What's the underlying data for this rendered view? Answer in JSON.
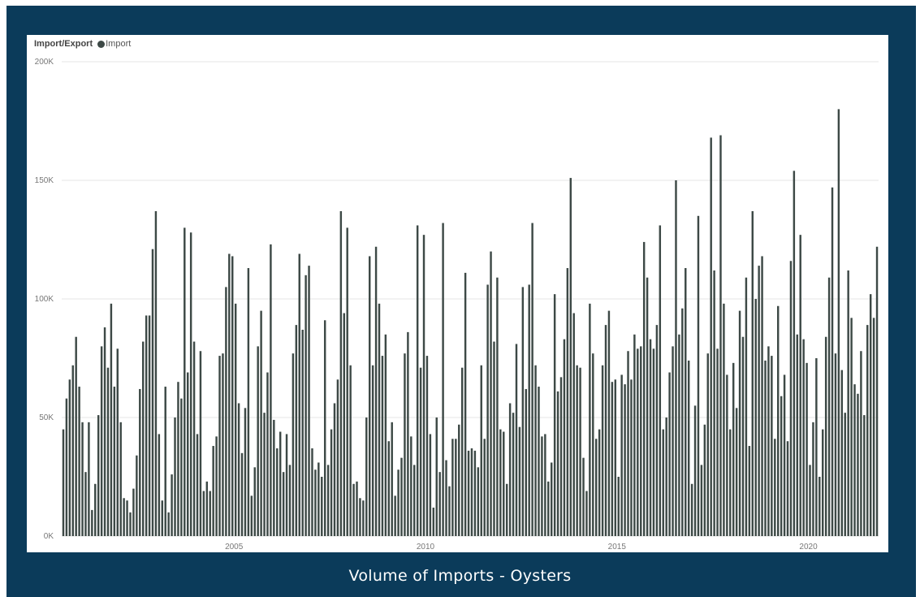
{
  "caption": "Volume of Imports - Oysters",
  "colors": {
    "frame": "#0b3b5a",
    "bar": "#3d4946",
    "grid": "#e6e6e6",
    "axis_text": "#777777"
  },
  "chart_data": {
    "type": "bar",
    "legend": {
      "title": "Import/Export",
      "items": [
        "Import"
      ],
      "placement": "top-left"
    },
    "yticks": [
      "0K",
      "50K",
      "100K",
      "150K",
      "200K"
    ],
    "ylim": [
      0,
      200000
    ],
    "xticks": [
      "2005",
      "2010",
      "2015",
      "2020"
    ],
    "x_start": "2000-07",
    "grid": true,
    "series": [
      {
        "name": "Import",
        "values": [
          45000,
          58000,
          66000,
          72000,
          84000,
          63000,
          48000,
          27000,
          48000,
          11000,
          22000,
          51000,
          80000,
          88000,
          71000,
          98000,
          63000,
          79000,
          48000,
          16000,
          15000,
          10000,
          20000,
          34000,
          62000,
          82000,
          93000,
          93000,
          121000,
          137000,
          43000,
          15000,
          63000,
          10000,
          26000,
          50000,
          65000,
          58000,
          130000,
          69000,
          128000,
          82000,
          43000,
          78000,
          19000,
          23000,
          19000,
          38000,
          42000,
          76000,
          77000,
          105000,
          119000,
          118000,
          98000,
          56000,
          35000,
          54000,
          113000,
          17000,
          29000,
          80000,
          95000,
          52000,
          69000,
          123000,
          49000,
          37000,
          44000,
          27000,
          43000,
          30000,
          77000,
          89000,
          119000,
          87000,
          110000,
          114000,
          37000,
          28000,
          31000,
          25000,
          91000,
          30000,
          45000,
          56000,
          66000,
          137000,
          94000,
          130000,
          72000,
          22000,
          23000,
          16000,
          15000,
          50000,
          118000,
          72000,
          122000,
          98000,
          76000,
          85000,
          40000,
          48000,
          17000,
          28000,
          33000,
          77000,
          86000,
          42000,
          30000,
          131000,
          71000,
          127000,
          76000,
          43000,
          12000,
          50000,
          27000,
          132000,
          32000,
          21000,
          41000,
          41000,
          47000,
          71000,
          111000,
          36000,
          37000,
          36000,
          29000,
          72000,
          41000,
          106000,
          120000,
          82000,
          109000,
          45000,
          44000,
          22000,
          56000,
          52000,
          81000,
          46000,
          105000,
          62000,
          106000,
          132000,
          72000,
          63000,
          42000,
          43000,
          23000,
          31000,
          102000,
          61000,
          67000,
          83000,
          113000,
          151000,
          94000,
          72000,
          71000,
          33000,
          19000,
          98000,
          77000,
          41000,
          45000,
          72000,
          89000,
          95000,
          65000,
          66000,
          25000,
          68000,
          64000,
          78000,
          66000,
          85000,
          79000,
          80000,
          124000,
          109000,
          83000,
          79000,
          89000,
          131000,
          45000,
          50000,
          69000,
          80000,
          150000,
          85000,
          96000,
          113000,
          74000,
          22000,
          55000,
          135000,
          30000,
          47000,
          77000,
          168000,
          112000,
          79000,
          169000,
          98000,
          68000,
          45000,
          73000,
          54000,
          95000,
          84000,
          109000,
          38000,
          137000,
          100000,
          114000,
          118000,
          74000,
          80000,
          76000,
          41000,
          97000,
          59000,
          68000,
          40000,
          116000,
          154000,
          85000,
          127000,
          83000,
          73000,
          30000,
          48000,
          75000,
          25000,
          45000,
          84000,
          109000,
          147000,
          77000,
          180000,
          70000,
          52000,
          112000,
          92000,
          64000,
          60000,
          78000,
          51000,
          89000,
          102000,
          92000,
          122000
        ]
      }
    ]
  }
}
